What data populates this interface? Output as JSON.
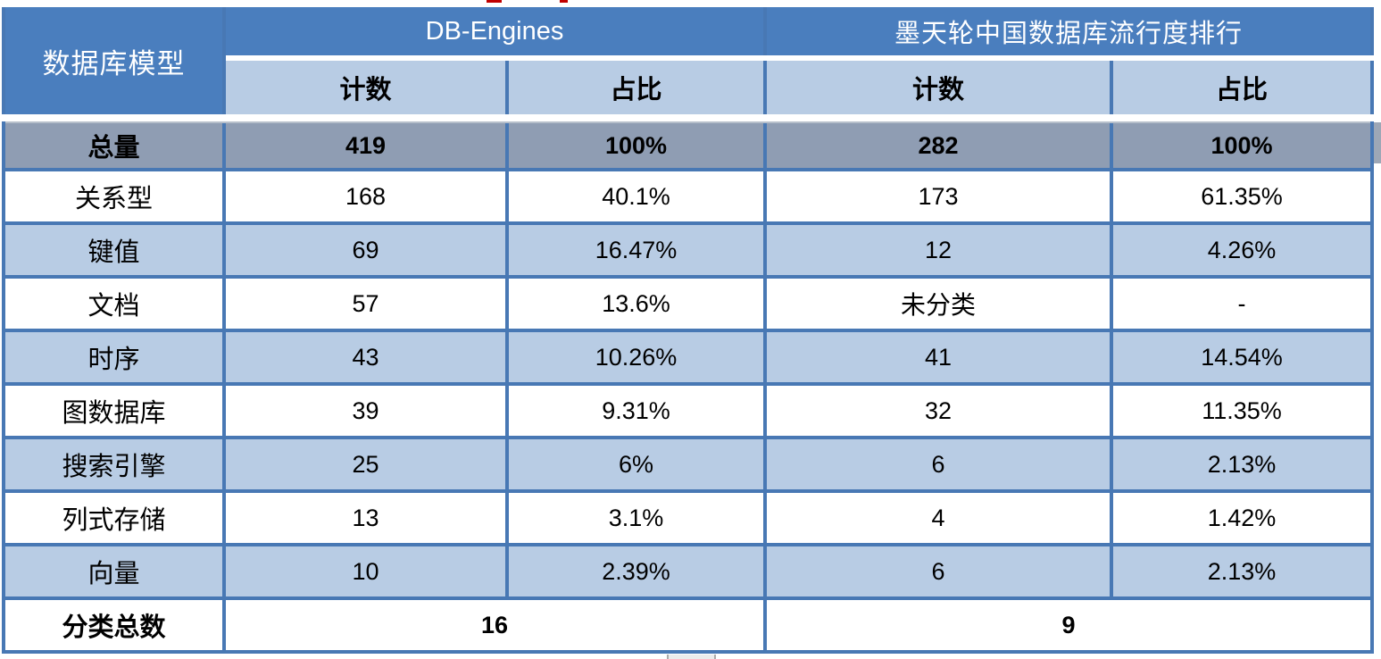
{
  "table": {
    "corner_header": "数据库模型",
    "groups": [
      {
        "title": "DB-Engines"
      },
      {
        "title": "墨天轮中国数据库流行度排行"
      }
    ],
    "sub_headers": {
      "count": "计数",
      "share": "占比"
    },
    "total_row": {
      "label": "总量",
      "db_count": "419",
      "db_share": "100%",
      "mo_count": "282",
      "mo_share": "100%"
    },
    "rows": [
      {
        "label": "关系型",
        "db_count": "168",
        "db_share": "40.1%",
        "mo_count": "173",
        "mo_share": "61.35%"
      },
      {
        "label": "键值",
        "db_count": "69",
        "db_share": "16.47%",
        "mo_count": "12",
        "mo_share": "4.26%"
      },
      {
        "label": "文档",
        "db_count": "57",
        "db_share": "13.6%",
        "mo_count": "未分类",
        "mo_share": "-"
      },
      {
        "label": "时序",
        "db_count": "43",
        "db_share": "10.26%",
        "mo_count": "41",
        "mo_share": "14.54%"
      },
      {
        "label": "图数据库",
        "db_count": "39",
        "db_share": "9.31%",
        "mo_count": "32",
        "mo_share": "11.35%"
      },
      {
        "label": "搜索引擎",
        "db_count": "25",
        "db_share": "6%",
        "mo_count": "6",
        "mo_share": "2.13%"
      },
      {
        "label": "列式存储",
        "db_count": "13",
        "db_share": "3.1%",
        "mo_count": "4",
        "mo_share": "1.42%"
      },
      {
        "label": "向量",
        "db_count": "10",
        "db_share": "2.39%",
        "mo_count": "6",
        "mo_share": "2.13%"
      }
    ],
    "footer_row": {
      "label": "分类总数",
      "db_total": "16",
      "mo_total": "9"
    },
    "colors": {
      "header-blue": "#4a7ebe",
      "light-blue": "#b8cce4",
      "total-gray": "#8f9db3",
      "border-blue": "#4878b4",
      "sliver-gray": "#9da7b6",
      "artifact-red": "#c00000"
    }
  },
  "chart_data": {
    "type": "table",
    "columns": [
      "数据库模型",
      "DB-Engines 计数",
      "DB-Engines 占比",
      "墨天轮中国数据库流行度排行 计数",
      "墨天轮中国数据库流行度排行 占比"
    ],
    "rows": [
      [
        "总量",
        "419",
        "100%",
        "282",
        "100%"
      ],
      [
        "关系型",
        "168",
        "40.1%",
        "173",
        "61.35%"
      ],
      [
        "键值",
        "69",
        "16.47%",
        "12",
        "4.26%"
      ],
      [
        "文档",
        "57",
        "13.6%",
        "未分类",
        "-"
      ],
      [
        "时序",
        "43",
        "10.26%",
        "41",
        "14.54%"
      ],
      [
        "图数据库",
        "39",
        "9.31%",
        "32",
        "11.35%"
      ],
      [
        "搜索引擎",
        "25",
        "6%",
        "6",
        "2.13%"
      ],
      [
        "列式存储",
        "13",
        "3.1%",
        "4",
        "1.42%"
      ],
      [
        "向量",
        "10",
        "2.39%",
        "6",
        "2.13%"
      ],
      [
        "分类总数",
        "16",
        "",
        "9",
        ""
      ]
    ],
    "layout": {
      "grid": "on",
      "zebra_rows": true,
      "header_fill": "#4a7ebe",
      "total_row_fill": "#8f9db3"
    }
  }
}
